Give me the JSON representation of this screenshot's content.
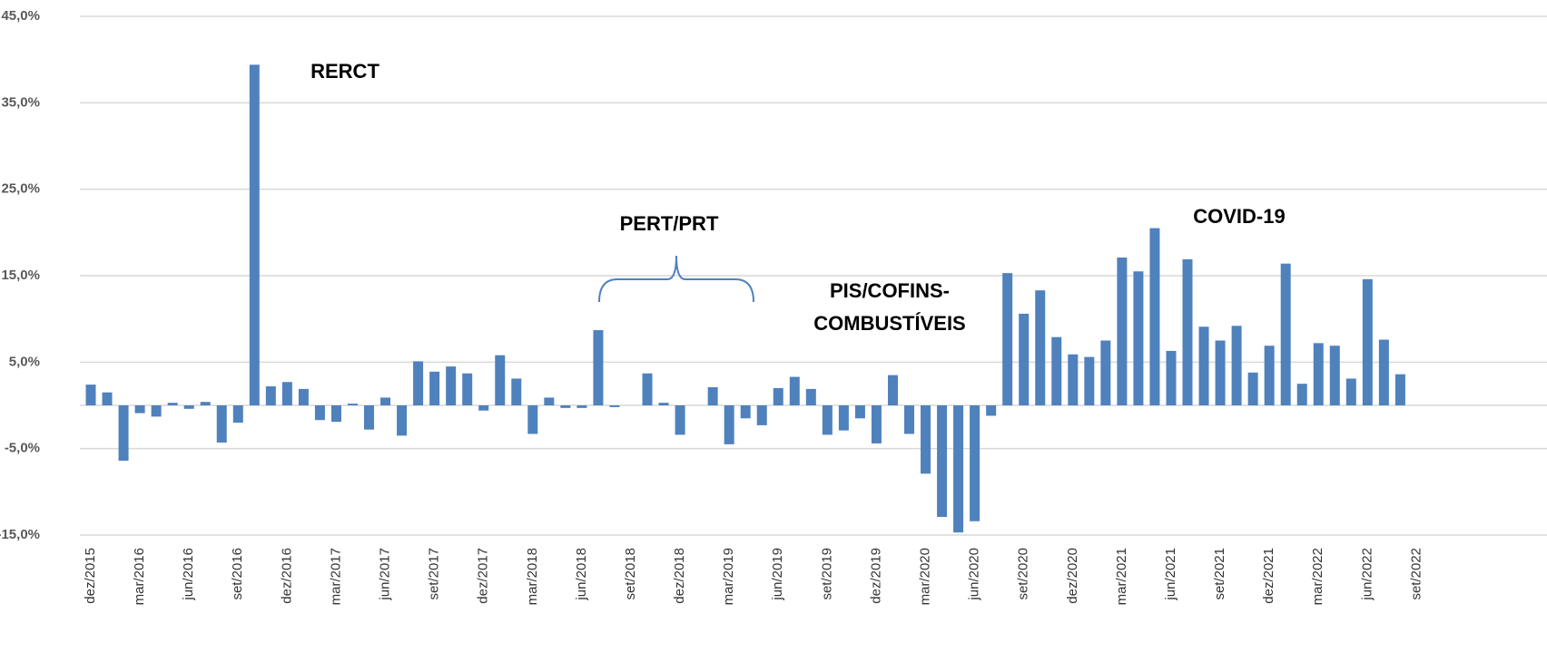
{
  "chart_data": {
    "type": "bar",
    "categories": [
      "dez/2015",
      null,
      null,
      "mar/2016",
      null,
      null,
      "jun/2016",
      null,
      null,
      "set/2016",
      null,
      null,
      "dez/2016",
      null,
      null,
      "mar/2017",
      null,
      null,
      "jun/2017",
      null,
      null,
      "set/2017",
      null,
      null,
      "dez/2017",
      null,
      null,
      "mar/2018",
      null,
      null,
      "jun/2018",
      null,
      null,
      "set/2018",
      null,
      null,
      "dez/2018",
      null,
      null,
      "mar/2019",
      null,
      null,
      "jun/2019",
      null,
      null,
      "set/2019",
      null,
      null,
      "dez/2019",
      null,
      null,
      "mar/2020",
      null,
      null,
      "jun/2020",
      null,
      null,
      "set/2020",
      null,
      null,
      "dez/2020",
      null,
      null,
      "mar/2021",
      null,
      null,
      "jun/2021",
      null,
      null,
      "set/2021",
      null,
      null,
      "dez/2021",
      null,
      null,
      "mar/2022",
      null,
      null,
      "jun/2022",
      null,
      null,
      "set/2022"
    ],
    "values": [
      2.4,
      1.5,
      -6.4,
      -0.9,
      -1.3,
      0.3,
      -0.4,
      0.4,
      -4.3,
      -2.0,
      39.4,
      2.2,
      2.7,
      1.9,
      -1.7,
      -1.9,
      0.2,
      -2.8,
      0.9,
      -3.5,
      5.1,
      3.9,
      4.5,
      3.7,
      -0.6,
      5.8,
      3.1,
      -3.3,
      0.9,
      -0.3,
      -0.3,
      8.7,
      -0.2,
      0,
      3.7,
      0.3,
      -3.4,
      0,
      2.1,
      -4.5,
      -1.5,
      -2.3,
      2.0,
      3.3,
      1.9,
      -3.4,
      -2.9,
      -1.5,
      -4.4,
      3.5,
      -3.3,
      -7.9,
      -12.9,
      -14.7,
      -13.4,
      -1.2,
      15.3,
      10.6,
      13.3,
      7.9,
      5.9,
      5.6,
      7.5,
      17.1,
      15.5,
      20.5,
      6.3,
      16.9,
      9.1,
      7.5,
      9.2,
      3.8,
      6.9,
      16.4,
      2.5,
      7.2,
      6.9,
      3.1,
      14.6,
      7.6,
      3.6,
      null
    ],
    "color": "#4f81bd",
    "ylim": [
      -15,
      45
    ],
    "yticks": [
      {
        "value": -15,
        "label": "-15,0%"
      },
      {
        "value": -5,
        "label": "-5,0%"
      },
      {
        "value": 5,
        "label": "5,0%"
      },
      {
        "value": 15,
        "label": "15,0%"
      },
      {
        "value": 25,
        "label": "25,0%"
      },
      {
        "value": 35,
        "label": "35,0%"
      },
      {
        "value": 45,
        "label": "45,0%"
      }
    ],
    "grid": true,
    "annotations": [
      "RERCT",
      "PERT/PRT",
      "PIS/COFINS-",
      "COMBUSTÍVEIS",
      "COVID-19"
    ]
  }
}
